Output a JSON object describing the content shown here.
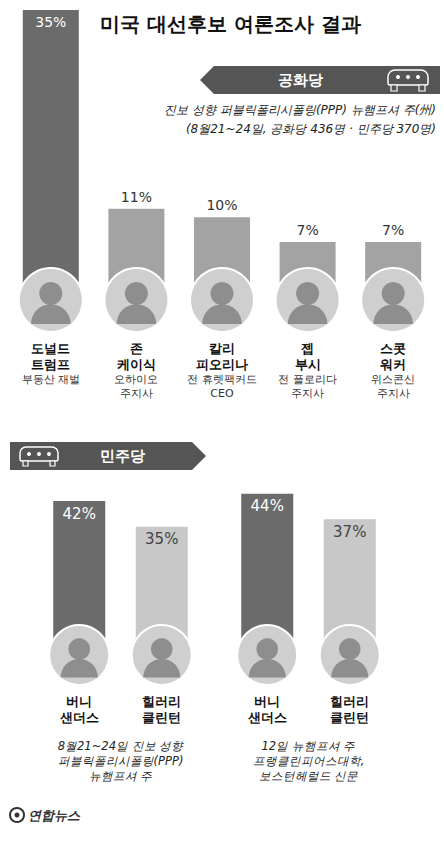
{
  "title": "미국 대선후보 여론조사 결과",
  "source": "연합뉴스",
  "chart_data": [
    {
      "type": "bar",
      "title": "공화당",
      "subtitle": "진보 성향 퍼블릭폴리시폴링(PPP) 뉴햄프셔 주(州)",
      "annotations": [
        "(8월21~24일, 공화당 436명 · 민주당 370명)"
      ],
      "categories": [
        "도널드 트럼프",
        "존 케이식",
        "칼리 피오리나",
        "젭 부시",
        "스콧 워커"
      ],
      "descriptions": [
        "부동산 재벌",
        "오하이오 주지사",
        "전 휴렛팩커드 CEO",
        "전 플로리다 주지사",
        "위스콘신 주지사"
      ],
      "values": [
        35,
        11,
        10,
        7,
        7
      ],
      "value_labels": [
        "35%",
        "11%",
        "10%",
        "7%",
        "7%"
      ],
      "colors": [
        "#6b6b6b",
        "#a3a3a3",
        "#a3a3a3",
        "#a3a3a3",
        "#a3a3a3"
      ],
      "ylim": [
        0,
        35
      ],
      "data_labels": true,
      "tick_labels": "x",
      "grid": false
    },
    {
      "type": "bar",
      "title": "민주당",
      "subtitle": "8월21~24일 진보 성향 퍼블릭폴리시폴링(PPP) 뉴햄프셔 주",
      "categories": [
        "버니 샌더스",
        "힐러리 클린턴"
      ],
      "values": [
        42,
        35
      ],
      "value_labels": [
        "42%",
        "35%"
      ],
      "colors": [
        "#6b6b6b",
        "#c8c8c8"
      ],
      "ylim": [
        0,
        45
      ],
      "data_labels": true,
      "tick_labels": "x",
      "grid": false
    },
    {
      "type": "bar",
      "subtitle": "12일 뉴햄프셔 주 프랭클린피어스대학, 보스턴헤럴드 신문",
      "categories": [
        "버니 샌더스",
        "힐러리 클린턴"
      ],
      "values": [
        44,
        37
      ],
      "value_labels": [
        "44%",
        "37%"
      ],
      "colors": [
        "#6b6b6b",
        "#c8c8c8"
      ],
      "ylim": [
        0,
        45
      ],
      "data_labels": true,
      "tick_labels": "x",
      "grid": false
    }
  ]
}
